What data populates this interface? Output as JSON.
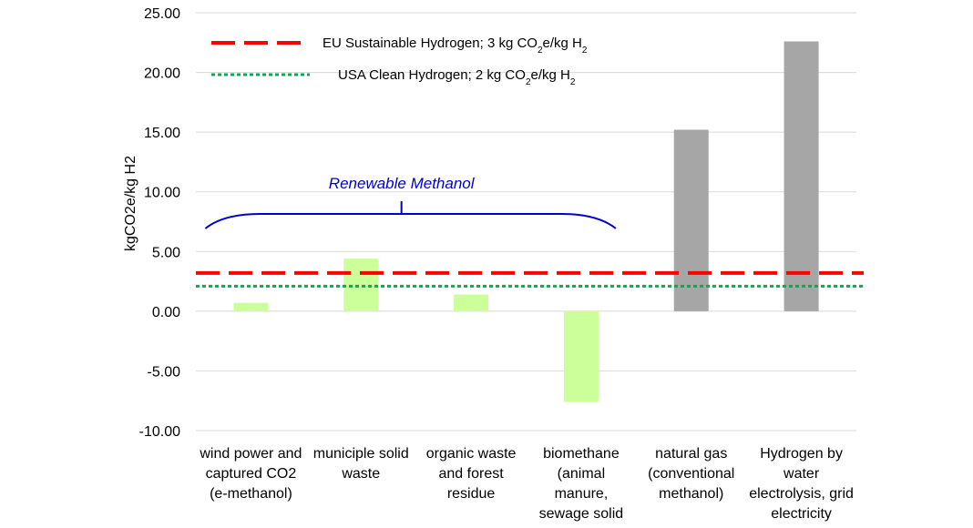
{
  "chart_data": {
    "type": "bar",
    "ylabel": "kgCO2e/kg H2",
    "ylim": [
      -10,
      25
    ],
    "yticks": [
      "-10.00",
      "-5.00",
      "0.00",
      "5.00",
      "10.00",
      "15.00",
      "20.00",
      "25.00"
    ],
    "grid": true,
    "categories": [
      [
        "wind power and",
        "captured CO2",
        "(e-methanol)"
      ],
      [
        "municiple solid",
        "waste"
      ],
      [
        "organic waste",
        "and forest",
        "residue"
      ],
      [
        "biomethane",
        "(animal",
        "manure,",
        "sewage solid"
      ],
      [
        "natural gas",
        "(conventional",
        "methanol)"
      ],
      [
        "Hydrogen by",
        "water",
        "electrolysis, grid",
        "electricity"
      ]
    ],
    "values": [
      0.7,
      4.4,
      1.4,
      -7.6,
      15.2,
      22.6
    ],
    "bar_colors": [
      "#ccff99",
      "#ccff99",
      "#ccff99",
      "#ccff99",
      "#a6a6a6",
      "#a6a6a6"
    ],
    "reference_lines": [
      {
        "value": 3.2,
        "color": "#ff0000",
        "style": "dashed",
        "label_main": "EU Sustainable Hydrogen; 3 kg CO",
        "label_tail": "e/kg H",
        "sub": "2"
      },
      {
        "value": 2.1,
        "color": "#00b050",
        "style": "dotted",
        "label_main": "USA Clean Hydrogen; 2 kg CO",
        "label_tail": "e/kg H",
        "sub": "2"
      }
    ],
    "legend_position": "top-left",
    "annotation": {
      "text": "Renewable Methanol",
      "color": "#0000cc",
      "spans_categories": [
        0,
        3
      ]
    }
  }
}
